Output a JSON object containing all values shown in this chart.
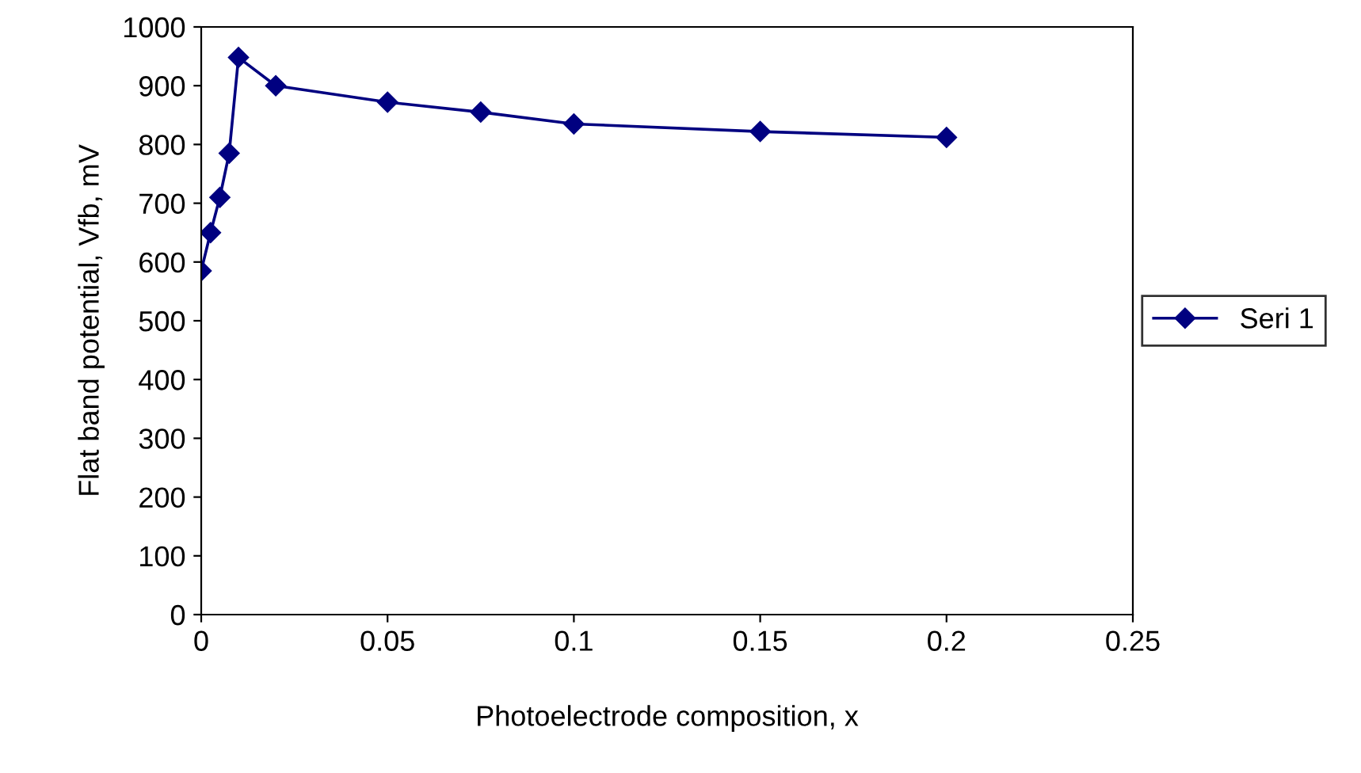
{
  "chart_data": {
    "type": "line",
    "xlabel": "Photoelectrode composition, x",
    "ylabel": "Flat band potential, Vfb, mV",
    "x": [
      0,
      0.0025,
      0.005,
      0.0075,
      0.01,
      0.02,
      0.05,
      0.075,
      0.1,
      0.15,
      0.2
    ],
    "series": [
      {
        "name": "Seri 1",
        "color": "#000080",
        "values": [
          585,
          650,
          710,
          785,
          948,
          900,
          872,
          855,
          835,
          822,
          812
        ]
      }
    ],
    "xlim": [
      0,
      0.25
    ],
    "xticks": [
      0,
      0.05,
      0.1,
      0.15,
      0.2,
      0.25
    ],
    "ylim": [
      0,
      1000
    ],
    "yticks": [
      0,
      100,
      200,
      300,
      400,
      500,
      600,
      700,
      800,
      900,
      1000
    ],
    "marker": "diamond",
    "line_style": "solid",
    "grid": false,
    "legend": "right"
  }
}
